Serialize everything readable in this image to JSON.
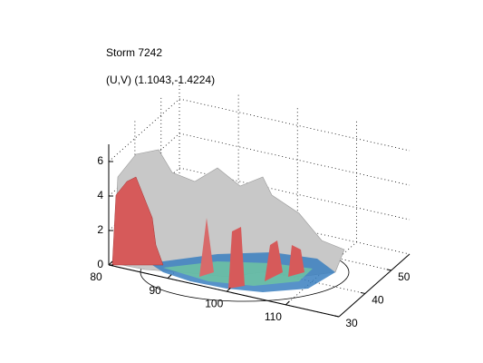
{
  "chart_data": {
    "type": "surface3d",
    "title": "Storm 7242",
    "subtitle": "(U,V) (1.1043,-1.4224)",
    "xlim": [
      80,
      119
    ],
    "xticks": [
      80,
      90,
      100,
      110
    ],
    "ylim": [
      30,
      57
    ],
    "yticks": [
      30,
      40,
      50
    ],
    "zlim": [
      0,
      7
    ],
    "zticks": [
      0,
      2,
      4,
      6
    ],
    "grid": true
  }
}
